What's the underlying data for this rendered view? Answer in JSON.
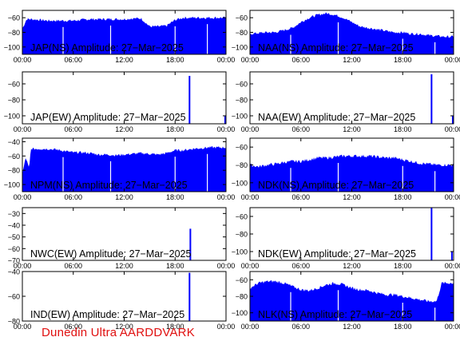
{
  "footer": "Dunedin Ultra AARDDVARK",
  "colors": {
    "fill": "#0000ff",
    "axis": "#000000",
    "text": "#000000",
    "footer": "#e01010"
  },
  "x_tick_labels": [
    "00:00",
    "06:00",
    "12:00",
    "18:00",
    "00:00"
  ],
  "chart_data": [
    {
      "type": "area",
      "title": "JAP(NS) Amplitude: 27-Mar-2025",
      "yticks": [
        -60,
        -80,
        -100
      ],
      "ylim": [
        -110,
        -50
      ],
      "xlim": [
        0,
        24
      ],
      "x": [
        0,
        0.5,
        1,
        2,
        3,
        4,
        5,
        6,
        7,
        8,
        9,
        10,
        11,
        12,
        13,
        14,
        15,
        16,
        17,
        18,
        19,
        20,
        21,
        22,
        23,
        24
      ],
      "values": [
        -75,
        -62,
        -62,
        -63,
        -64,
        -64,
        -64,
        -64,
        -63,
        -62,
        -62,
        -62,
        -62,
        -62,
        -61,
        -61,
        -72,
        -72,
        -71,
        -63,
        -60,
        -60,
        -60,
        -60,
        -60,
        -60
      ]
    },
    {
      "type": "area",
      "title": "NAA(NS) Amplitude: 27-Mar-2025",
      "yticks": [
        -60,
        -80,
        -100
      ],
      "ylim": [
        -110,
        -50
      ],
      "xlim": [
        0,
        24
      ],
      "x": [
        0,
        1,
        2,
        3,
        4,
        5,
        6,
        7,
        8,
        9,
        10,
        11,
        12,
        13,
        14,
        15,
        16,
        17,
        18,
        19,
        20,
        21,
        22,
        23,
        24
      ],
      "values": [
        -82,
        -81,
        -80,
        -80,
        -77,
        -74,
        -66,
        -60,
        -56,
        -54,
        -56,
        -60,
        -66,
        -72,
        -74,
        -76,
        -78,
        -80,
        -80,
        -82,
        -82,
        -84,
        -85,
        -86,
        -86
      ]
    },
    {
      "type": "area",
      "title": "JAP(EW) Amplitude: 27-Mar-2025",
      "yticks": [
        -60,
        -80,
        -100
      ],
      "ylim": [
        -110,
        -45
      ],
      "xlim": [
        0,
        24
      ],
      "spikes": [
        [
          19.7,
          -50
        ],
        [
          23.9,
          -100
        ]
      ]
    },
    {
      "type": "area",
      "title": "NAA(EW) Amplitude: 27-Mar-2025",
      "yticks": [
        -60,
        -80,
        -100
      ],
      "ylim": [
        -110,
        -45
      ],
      "xlim": [
        0,
        24
      ],
      "spikes": [
        [
          21.4,
          -48
        ],
        [
          23.9,
          -100
        ]
      ]
    },
    {
      "type": "area",
      "title": "NPM(NS) Amplitude: 27-Mar-2025",
      "yticks": [
        -40,
        -60,
        -80,
        -100
      ],
      "ylim": [
        -110,
        -35
      ],
      "xlim": [
        0,
        24
      ],
      "x": [
        0,
        0.4,
        0.8,
        1,
        2,
        3,
        4,
        5,
        6,
        7,
        8,
        9,
        10,
        11,
        12,
        13,
        14,
        15,
        16,
        17,
        18,
        19,
        20,
        21,
        22,
        23,
        24
      ],
      "values": [
        -85,
        -62,
        -78,
        -50,
        -50,
        -50,
        -51,
        -53,
        -55,
        -55,
        -56,
        -58,
        -58,
        -59,
        -58,
        -57,
        -56,
        -57,
        -58,
        -56,
        -52,
        -52,
        -50,
        -49,
        -48,
        -48,
        -48
      ]
    },
    {
      "type": "area",
      "title": "NDK(NS) Amplitude: 27-Mar-2025",
      "yticks": [
        -60,
        -80,
        -100
      ],
      "ylim": [
        -110,
        -50
      ],
      "xlim": [
        0,
        24
      ],
      "x": [
        0,
        1,
        2,
        3,
        4,
        5,
        6,
        7,
        8,
        9,
        10,
        11,
        12,
        13,
        14,
        15,
        16,
        17,
        18,
        19,
        20,
        21,
        22,
        23,
        24
      ],
      "values": [
        -80,
        -82,
        -80,
        -79,
        -77,
        -76,
        -76,
        -74,
        -72,
        -72,
        -71,
        -70,
        -70,
        -70,
        -70,
        -71,
        -72,
        -72,
        -74,
        -76,
        -78,
        -79,
        -80,
        -80,
        -80
      ]
    },
    {
      "type": "area",
      "title": "NWC(EW) Amplitude: 27-Mar-2025",
      "yticks": [
        -30,
        -40,
        -50,
        -60,
        -70
      ],
      "ylim": [
        -70,
        -25
      ],
      "xlim": [
        0,
        24
      ],
      "spikes": [
        [
          19.8,
          -43
        ]
      ]
    },
    {
      "type": "area",
      "title": "NDK(EW) Amplitude: 27-Mar-2025",
      "yticks": [
        -60,
        -80,
        -100
      ],
      "ylim": [
        -110,
        -50
      ],
      "xlim": [
        0,
        24
      ],
      "spikes": [
        [
          21.4,
          -50
        ],
        [
          23.8,
          -100
        ]
      ]
    },
    {
      "type": "area",
      "title": "IND(EW) Amplitude: 27-Mar-2025",
      "yticks": [
        -40,
        -60,
        -80
      ],
      "ylim": [
        -80,
        -40
      ],
      "xlim": [
        0,
        24
      ],
      "spikes": [
        [
          19.7,
          -41
        ]
      ]
    },
    {
      "type": "area",
      "title": "NLK(NS) Amplitude: 27-Mar-2025",
      "yticks": [
        -60,
        -80,
        -100
      ],
      "ylim": [
        -110,
        -50
      ],
      "xlim": [
        0,
        24
      ],
      "x": [
        0,
        1,
        2,
        3,
        4,
        5,
        6,
        7,
        8,
        9,
        10,
        11,
        12,
        13,
        14,
        15,
        16,
        17,
        18,
        19,
        20,
        21,
        22,
        22.6,
        23,
        24
      ],
      "values": [
        -70,
        -64,
        -62,
        -62,
        -64,
        -68,
        -72,
        -73,
        -70,
        -66,
        -64,
        -66,
        -70,
        -72,
        -73,
        -76,
        -78,
        -78,
        -80,
        -82,
        -84,
        -86,
        -86,
        -64,
        -64,
        -64
      ]
    }
  ]
}
